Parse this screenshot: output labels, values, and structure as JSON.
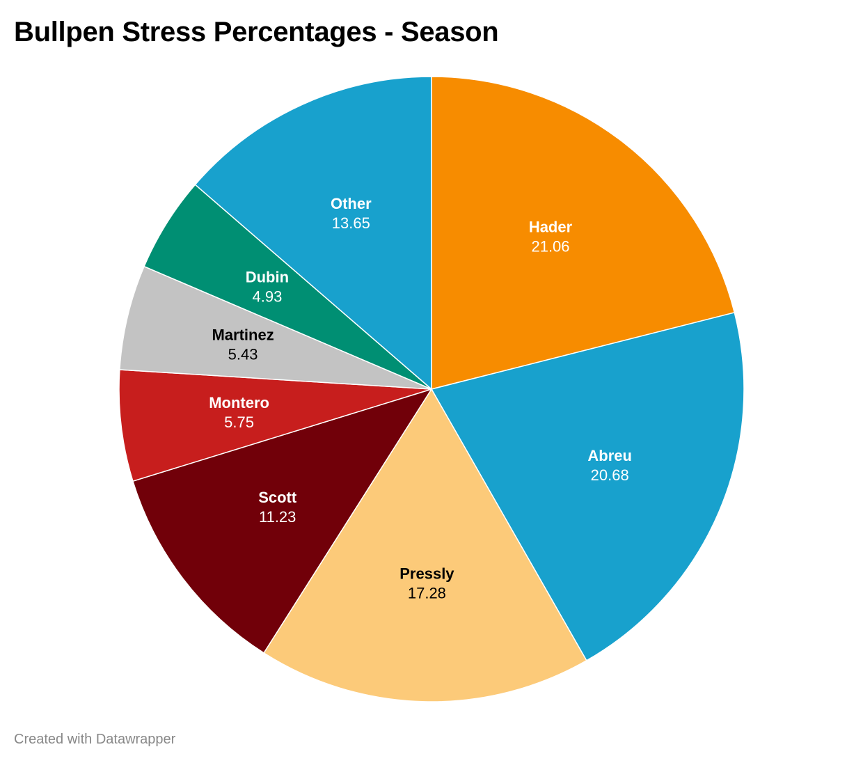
{
  "chart_data": {
    "type": "pie",
    "title": "Bullpen Stress Percentages - Season",
    "slices": [
      {
        "label": "Hader",
        "value": 21.06,
        "display": "21.06",
        "color": "#f78c00",
        "text_color": "#ffffff"
      },
      {
        "label": "Abreu",
        "value": 20.68,
        "display": "20.68",
        "color": "#18a1cd",
        "text_color": "#ffffff"
      },
      {
        "label": "Pressly",
        "value": 17.28,
        "display": "17.28",
        "color": "#fcca79",
        "text_color": "#000000"
      },
      {
        "label": "Scott",
        "value": 11.23,
        "display": "11.23",
        "color": "#710009",
        "text_color": "#ffffff"
      },
      {
        "label": "Montero",
        "value": 5.75,
        "display": "5.75",
        "color": "#c71e1d",
        "text_color": "#ffffff"
      },
      {
        "label": "Martinez",
        "value": 5.43,
        "display": "5.43",
        "color": "#c3c3c3",
        "text_color": "#000000"
      },
      {
        "label": "Dubin",
        "value": 4.93,
        "display": "4.93",
        "color": "#008f73",
        "text_color": "#ffffff"
      },
      {
        "label": "Other",
        "value": 13.65,
        "display": "13.65",
        "color": "#18a1cd",
        "text_color": "#ffffff"
      }
    ]
  },
  "footer": {
    "credit": "Created with Datawrapper"
  }
}
